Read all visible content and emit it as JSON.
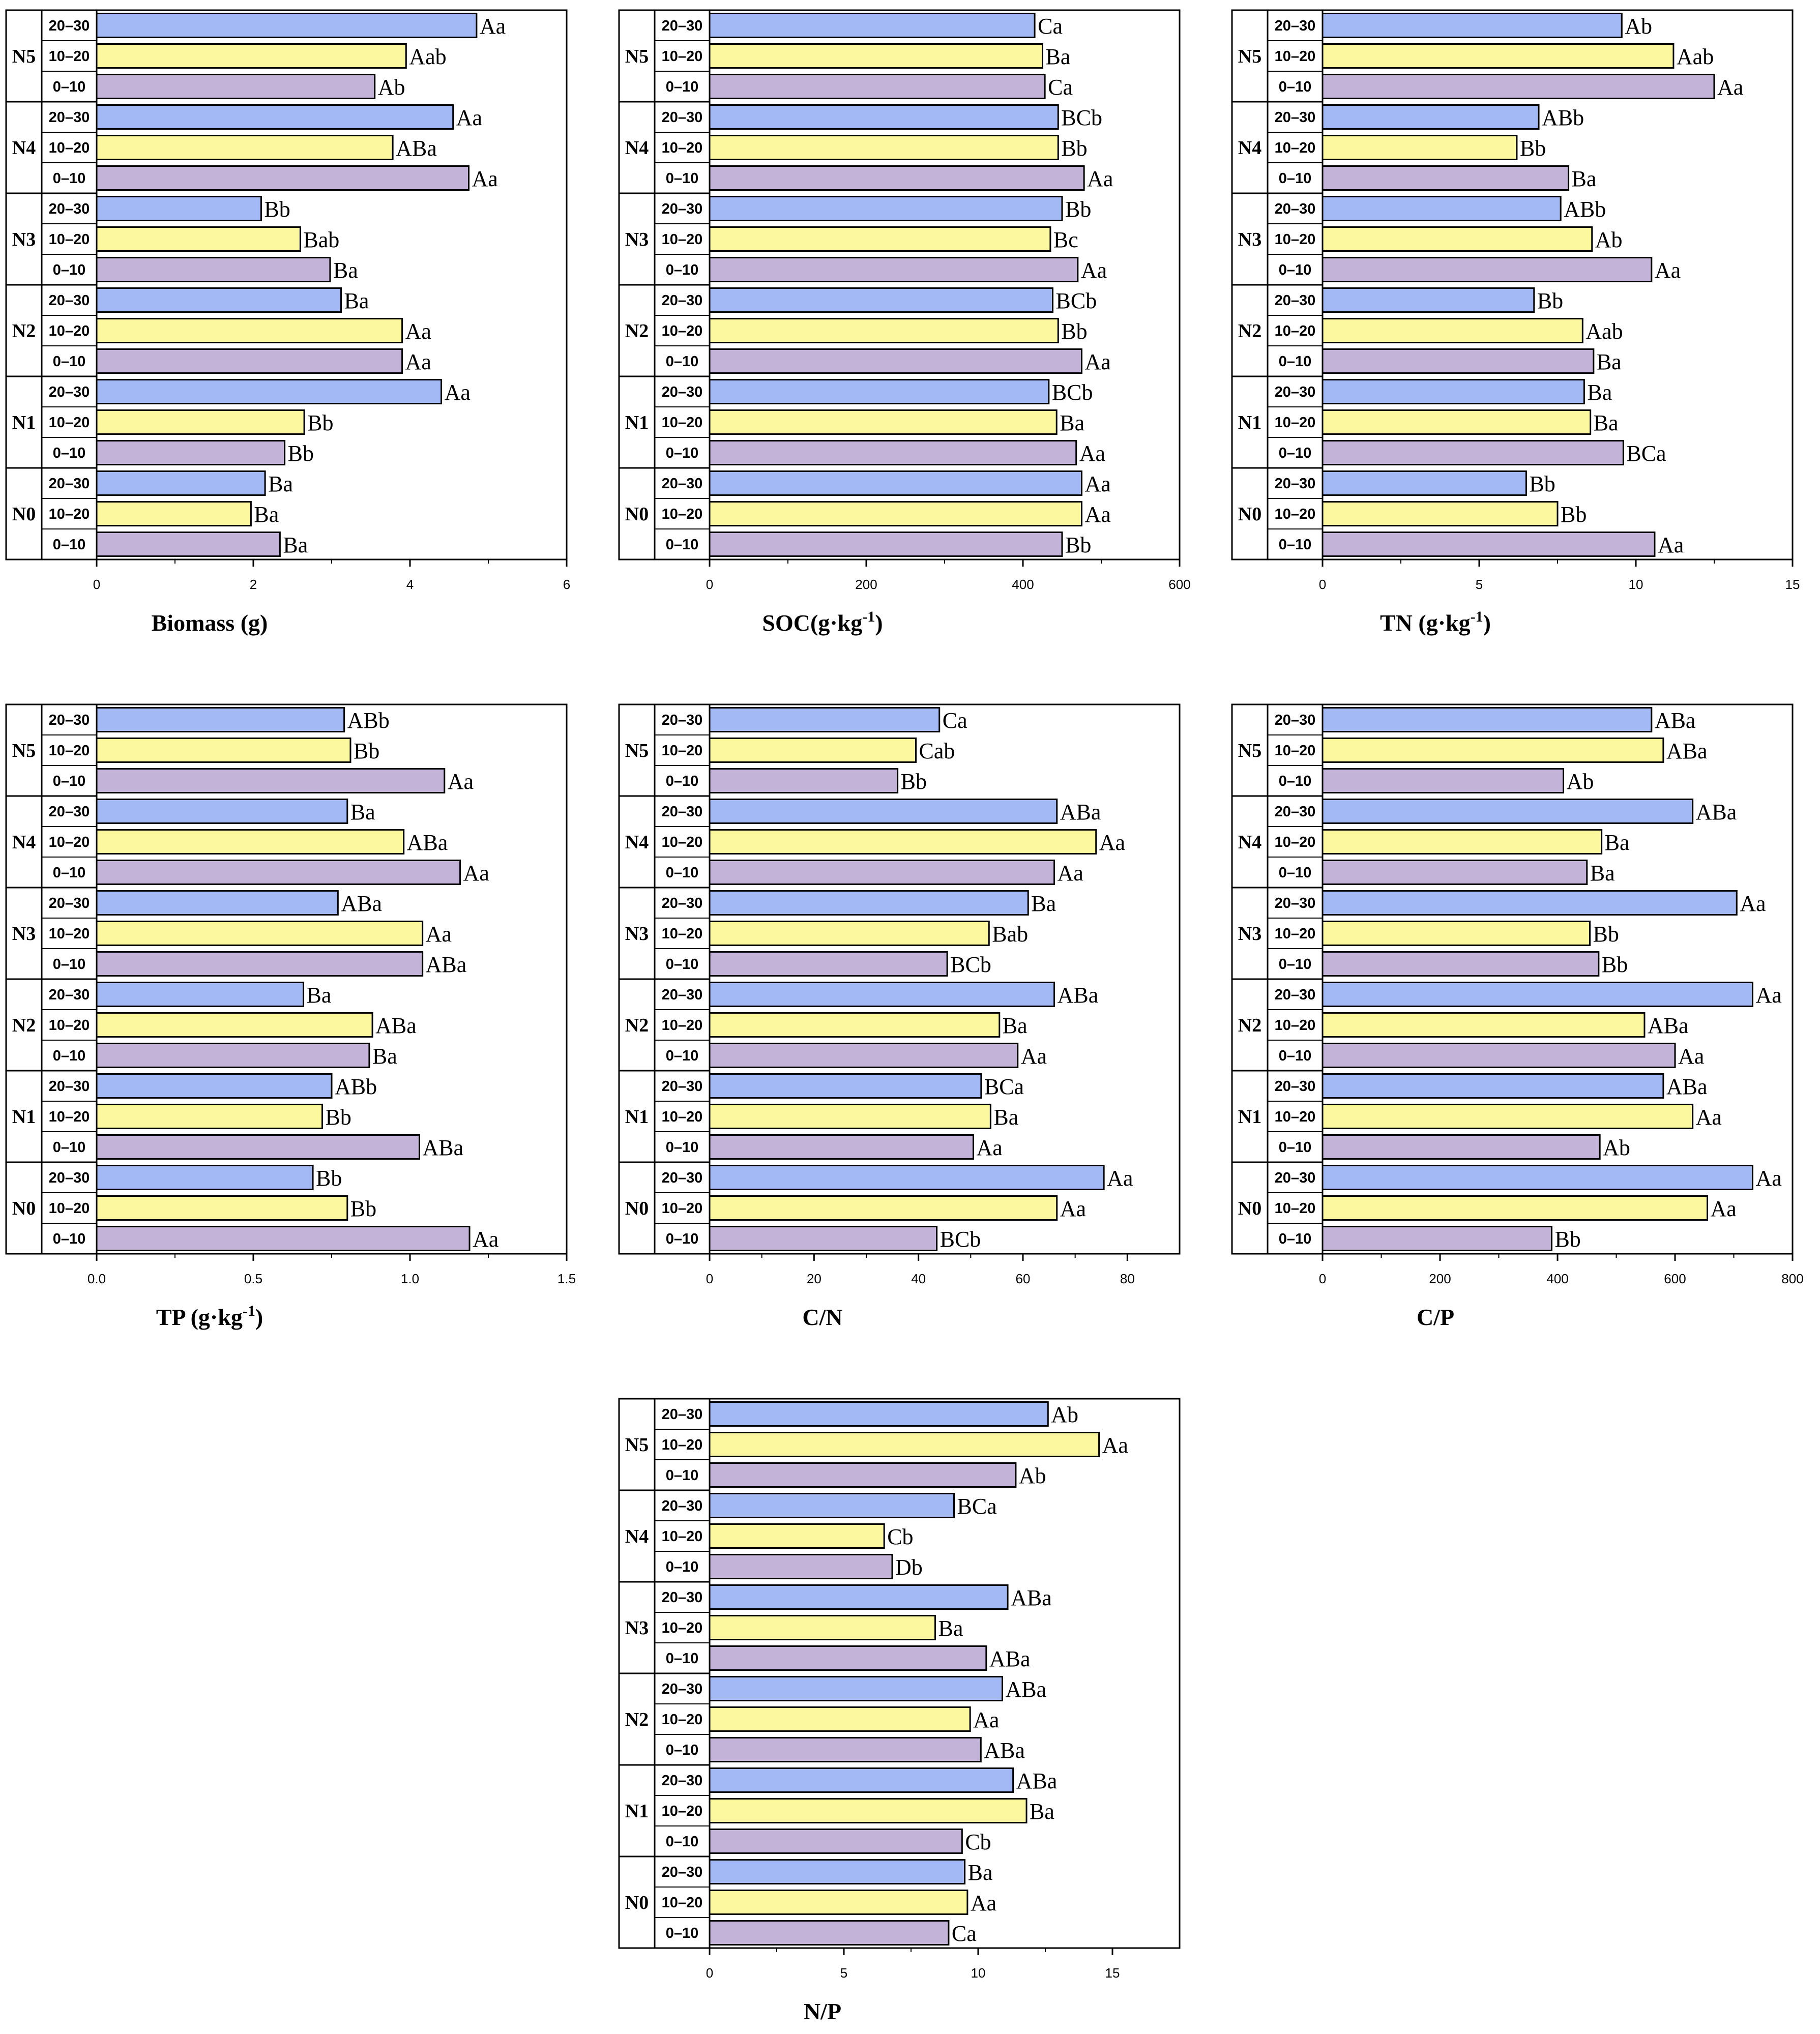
{
  "colors": {
    "d20_30": "#a2b9f5",
    "d10_20": "#fbf8a0",
    "d0_10": "#c3b3d8"
  },
  "group_labels": [
    "N5",
    "N4",
    "N3",
    "N2",
    "N1",
    "N0"
  ],
  "depth_labels": [
    "20–30",
    "10–20",
    "0–10"
  ],
  "chart_data": [
    {
      "type": "bar",
      "orientation": "horizontal",
      "xlabel": "Biomass (g)",
      "xlabel_sup": "",
      "xlim": [
        0,
        6
      ],
      "ticks": [
        0,
        2,
        4,
        6
      ],
      "tick_labels": [
        "0",
        "2",
        "4",
        "6"
      ],
      "groups": [
        "N5",
        "N4",
        "N3",
        "N2",
        "N1",
        "N0"
      ],
      "series": [
        {
          "name": "20–30",
          "values": [
            4.85,
            4.55,
            2.1,
            3.12,
            4.4,
            2.15
          ],
          "letters": [
            "Aa",
            "Aa",
            "Bb",
            "Ba",
            "Aa",
            "Ba"
          ]
        },
        {
          "name": "10–20",
          "values": [
            3.95,
            3.78,
            2.6,
            3.9,
            2.65,
            1.97
          ],
          "letters": [
            "Aab",
            "ABa",
            "Bab",
            "Aa",
            "Bb",
            "Ba"
          ]
        },
        {
          "name": "0–10",
          "values": [
            3.55,
            4.75,
            2.98,
            3.9,
            2.4,
            2.34
          ],
          "letters": [
            "Ab",
            "Aa",
            "Ba",
            "Aa",
            "Bb",
            "Ba"
          ]
        }
      ]
    },
    {
      "type": "bar",
      "orientation": "horizontal",
      "xlabel": "SOC(g·kg",
      "xlabel_sup": "-1",
      "xlabel_tail": ")",
      "xlim": [
        0,
        600
      ],
      "ticks": [
        0,
        200,
        400,
        600
      ],
      "tick_labels": [
        "0",
        "200",
        "400",
        "600"
      ],
      "groups": [
        "N5",
        "N4",
        "N3",
        "N2",
        "N1",
        "N0"
      ],
      "series": [
        {
          "name": "20–30",
          "values": [
            415,
            445,
            450,
            438,
            433,
            475
          ],
          "letters": [
            "Ca",
            "BCb",
            "Bb",
            "BCb",
            "BCb",
            "Aa"
          ]
        },
        {
          "name": "10–20",
          "values": [
            425,
            445,
            435,
            445,
            443,
            475
          ],
          "letters": [
            "Ba",
            "Bb",
            "Bc",
            "Bb",
            "Ba",
            "Aa"
          ]
        },
        {
          "name": "0–10",
          "values": [
            428,
            478,
            470,
            475,
            468,
            450
          ],
          "letters": [
            "Ca",
            "Aa",
            "Aa",
            "Aa",
            "Aa",
            "Bb"
          ]
        }
      ]
    },
    {
      "type": "bar",
      "orientation": "horizontal",
      "xlabel": "TN (g·kg",
      "xlabel_sup": "-1",
      "xlabel_tail": ")",
      "xlim": [
        0,
        15
      ],
      "ticks": [
        0,
        5,
        10,
        15
      ],
      "tick_labels": [
        "0",
        "5",
        "10",
        "15"
      ],
      "groups": [
        "N5",
        "N4",
        "N3",
        "N2",
        "N1",
        "N0"
      ],
      "series": [
        {
          "name": "20–30",
          "values": [
            9.55,
            6.9,
            7.6,
            6.75,
            8.35,
            6.5
          ],
          "letters": [
            "Ab",
            "ABb",
            "ABb",
            "Bb",
            "Ba",
            "Bb"
          ]
        },
        {
          "name": "10–20",
          "values": [
            11.2,
            6.2,
            8.6,
            8.3,
            8.55,
            7.5
          ],
          "letters": [
            "Aab",
            "Bb",
            "Ab",
            "Aab",
            "Ba",
            "Bb"
          ]
        },
        {
          "name": "0–10",
          "values": [
            12.5,
            7.85,
            10.5,
            8.65,
            9.6,
            10.6
          ],
          "letters": [
            "Aa",
            "Ba",
            "Aa",
            "Ba",
            "BCa",
            "Aa"
          ]
        }
      ]
    },
    {
      "type": "bar",
      "orientation": "horizontal",
      "xlabel": "TP (g·kg",
      "xlabel_sup": "-1",
      "xlabel_tail": ")",
      "xlim": [
        0,
        1.5
      ],
      "ticks": [
        0,
        0.5,
        1.0,
        1.5
      ],
      "tick_labels": [
        "0.0",
        "0.5",
        "1.0",
        "1.5"
      ],
      "groups": [
        "N5",
        "N4",
        "N3",
        "N2",
        "N1",
        "N0"
      ],
      "series": [
        {
          "name": "20–30",
          "values": [
            0.79,
            0.8,
            0.77,
            0.66,
            0.75,
            0.69
          ],
          "letters": [
            "ABb",
            "Ba",
            "ABa",
            "Ba",
            "ABb",
            "Bb"
          ]
        },
        {
          "name": "10–20",
          "values": [
            0.81,
            0.98,
            1.04,
            0.88,
            0.72,
            0.8
          ],
          "letters": [
            "Bb",
            "ABa",
            "Aa",
            "ABa",
            "Bb",
            "Bb"
          ]
        },
        {
          "name": "0–10",
          "values": [
            1.11,
            1.16,
            1.04,
            0.87,
            1.03,
            1.19
          ],
          "letters": [
            "Aa",
            "Aa",
            "ABa",
            "Ba",
            "ABa",
            "Aa"
          ]
        }
      ]
    },
    {
      "type": "bar",
      "orientation": "horizontal",
      "xlabel": "C/N",
      "xlabel_sup": "",
      "xlim": [
        0,
        90
      ],
      "ticks": [
        0,
        20,
        40,
        60,
        80
      ],
      "tick_labels": [
        "0",
        "20",
        "40",
        "60",
        "80"
      ],
      "groups": [
        "N5",
        "N4",
        "N3",
        "N2",
        "N1",
        "N0"
      ],
      "series": [
        {
          "name": "20–30",
          "values": [
            44,
            66.5,
            61,
            66,
            52,
            75.5
          ],
          "letters": [
            "Ca",
            "ABa",
            "Ba",
            "ABa",
            "BCa",
            "Aa"
          ]
        },
        {
          "name": "10–20",
          "values": [
            39.5,
            74,
            53.5,
            55.5,
            53.8,
            66.5
          ],
          "letters": [
            "Cab",
            "Aa",
            "Bab",
            "Ba",
            "Ba",
            "Aa"
          ]
        },
        {
          "name": "0–10",
          "values": [
            36,
            66,
            45.5,
            59,
            50.5,
            43.5
          ],
          "letters": [
            "Bb",
            "Aa",
            "BCb",
            "Aa",
            "Aa",
            "BCb"
          ]
        }
      ]
    },
    {
      "type": "bar",
      "orientation": "horizontal",
      "xlabel": "C/P",
      "xlabel_sup": "",
      "xlim": [
        0,
        800
      ],
      "ticks": [
        0,
        200,
        400,
        600,
        800
      ],
      "tick_labels": [
        "0",
        "200",
        "400",
        "600",
        "800"
      ],
      "groups": [
        "N5",
        "N4",
        "N3",
        "N2",
        "N1",
        "N0"
      ],
      "series": [
        {
          "name": "20–30",
          "values": [
            560,
            630,
            705,
            732,
            580,
            732
          ],
          "letters": [
            "ABa",
            "ABa",
            "Aa",
            "Aa",
            "ABa",
            "Aa"
          ]
        },
        {
          "name": "10–20",
          "values": [
            580,
            475,
            455,
            548,
            630,
            655
          ],
          "letters": [
            "ABa",
            "Ba",
            "Bb",
            "ABa",
            "Aa",
            "Aa"
          ]
        },
        {
          "name": "0–10",
          "values": [
            410,
            450,
            470,
            600,
            472,
            390
          ],
          "letters": [
            "Ab",
            "Ba",
            "Bb",
            "Aa",
            "Ab",
            "Bb"
          ]
        }
      ]
    },
    {
      "type": "bar",
      "orientation": "horizontal",
      "xlabel": "N/P",
      "xlabel_sup": "",
      "xlim": [
        0,
        17.5
      ],
      "ticks": [
        0,
        5,
        10,
        15
      ],
      "tick_labels": [
        "0",
        "5",
        "10",
        "15"
      ],
      "groups": [
        "N5",
        "N4",
        "N3",
        "N2",
        "N1",
        "N0"
      ],
      "series": [
        {
          "name": "20–30",
          "values": [
            12.6,
            9.1,
            11.1,
            10.9,
            11.3,
            9.5
          ],
          "letters": [
            "Ab",
            "BCa",
            "ABa",
            "ABa",
            "ABa",
            "Ba"
          ]
        },
        {
          "name": "10–20",
          "values": [
            14.5,
            6.5,
            8.4,
            9.7,
            11.8,
            9.6
          ],
          "letters": [
            "Aa",
            "Cb",
            "Ba",
            "Aa",
            "Ba",
            "Aa"
          ]
        },
        {
          "name": "0–10",
          "values": [
            11.4,
            6.8,
            10.3,
            10.1,
            9.4,
            8.9
          ],
          "letters": [
            "Ab",
            "Db",
            "ABa",
            "ABa",
            "Cb",
            "Ca"
          ]
        }
      ]
    }
  ]
}
